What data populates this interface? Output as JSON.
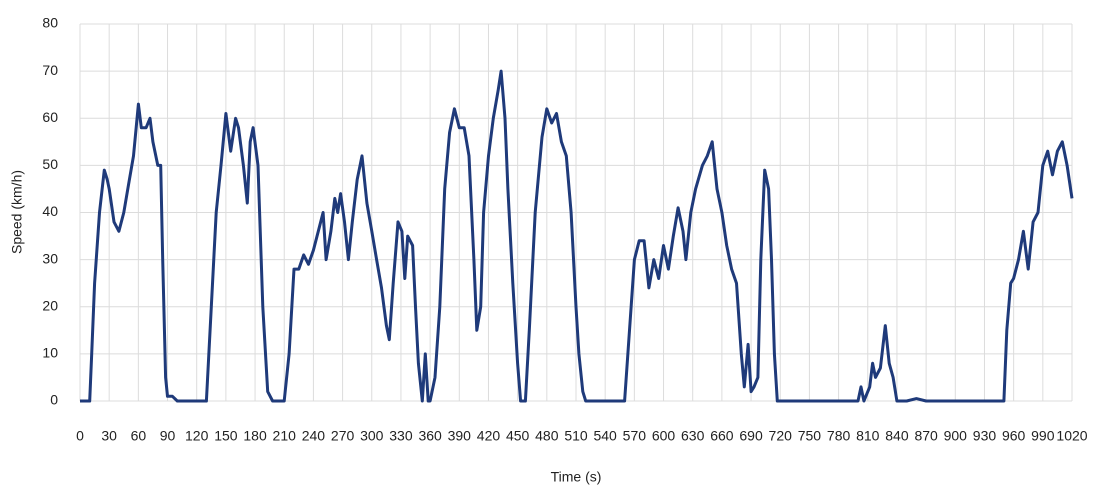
{
  "chart_data": {
    "type": "line",
    "x_label": "Time (s)",
    "y_label": "Speed (km/h)",
    "xlim": [
      0,
      1020
    ],
    "ylim": [
      0,
      80
    ],
    "xticks": [
      0,
      30,
      60,
      90,
      120,
      150,
      180,
      210,
      240,
      270,
      300,
      330,
      360,
      390,
      420,
      450,
      480,
      510,
      540,
      570,
      600,
      630,
      660,
      690,
      720,
      750,
      780,
      810,
      840,
      870,
      900,
      930,
      960,
      990,
      1020
    ],
    "yticks": [
      0,
      10,
      20,
      30,
      40,
      50,
      60,
      70,
      80
    ],
    "grid": true,
    "series": [
      {
        "color": "#1f3a7a",
        "x": [
          0,
          10,
          12,
          15,
          20,
          25,
          28,
          30,
          35,
          40,
          45,
          50,
          55,
          60,
          63,
          68,
          72,
          75,
          80,
          83,
          85,
          88,
          90,
          95,
          100,
          130,
          135,
          140,
          145,
          150,
          155,
          160,
          163,
          168,
          172,
          175,
          178,
          183,
          188,
          193,
          198,
          210,
          215,
          220,
          225,
          230,
          235,
          240,
          245,
          250,
          253,
          258,
          262,
          265,
          268,
          272,
          276,
          280,
          285,
          290,
          295,
          300,
          305,
          310,
          315,
          318,
          322,
          327,
          331,
          334,
          337,
          342,
          345,
          348,
          352,
          355,
          358,
          360,
          365,
          370,
          375,
          380,
          385,
          390,
          395,
          400,
          405,
          408,
          412,
          415,
          420,
          425,
          430,
          433,
          437,
          440,
          445,
          450,
          453,
          458,
          462,
          468,
          475,
          480,
          485,
          490,
          495,
          500,
          505,
          510,
          513,
          517,
          520,
          560,
          565,
          570,
          575,
          580,
          585,
          590,
          595,
          600,
          605,
          610,
          615,
          620,
          623,
          628,
          633,
          640,
          645,
          650,
          655,
          660,
          665,
          670,
          675,
          680,
          683,
          687,
          690,
          693,
          697,
          700,
          704,
          708,
          711,
          714,
          717,
          800,
          803,
          806,
          812,
          815,
          818,
          823,
          828,
          832,
          836,
          840,
          850,
          860,
          870,
          945,
          950,
          953,
          957,
          960,
          965,
          970,
          975,
          980,
          985,
          990,
          995,
          1000,
          1005,
          1010,
          1015,
          1020
        ],
        "values": [
          0,
          0,
          10,
          25,
          40,
          49,
          47,
          45,
          38,
          36,
          40,
          46,
          52,
          63,
          58,
          58,
          60,
          55,
          50,
          50,
          30,
          5,
          1,
          1,
          0,
          0,
          20,
          40,
          50,
          61,
          53,
          60,
          58,
          50,
          42,
          55,
          58,
          50,
          20,
          2,
          0,
          0,
          10,
          28,
          28,
          31,
          29,
          32,
          36,
          40,
          30,
          36,
          43,
          40,
          44,
          38,
          30,
          38,
          47,
          52,
          42,
          36,
          30,
          24,
          16,
          13,
          25,
          38,
          36,
          26,
          35,
          33,
          20,
          8,
          0,
          10,
          0,
          0,
          5,
          20,
          45,
          57,
          62,
          58,
          58,
          52,
          30,
          15,
          20,
          40,
          52,
          60,
          66,
          70,
          60,
          45,
          25,
          8,
          0,
          0,
          15,
          40,
          56,
          62,
          59,
          61,
          55,
          52,
          40,
          20,
          10,
          2,
          0,
          0,
          15,
          30,
          34,
          34,
          24,
          30,
          26,
          33,
          28,
          35,
          41,
          36,
          30,
          40,
          45,
          50,
          52,
          55,
          45,
          40,
          33,
          28,
          25,
          10,
          3,
          12,
          2,
          3,
          5,
          30,
          49,
          45,
          30,
          10,
          0,
          0,
          3,
          0,
          3,
          8,
          5,
          7,
          16,
          8,
          5,
          0,
          0,
          0.5,
          0,
          0,
          0,
          15,
          25,
          26,
          30,
          36,
          28,
          38,
          40,
          50,
          53,
          48,
          53,
          55,
          50,
          43
        ]
      }
    ]
  }
}
